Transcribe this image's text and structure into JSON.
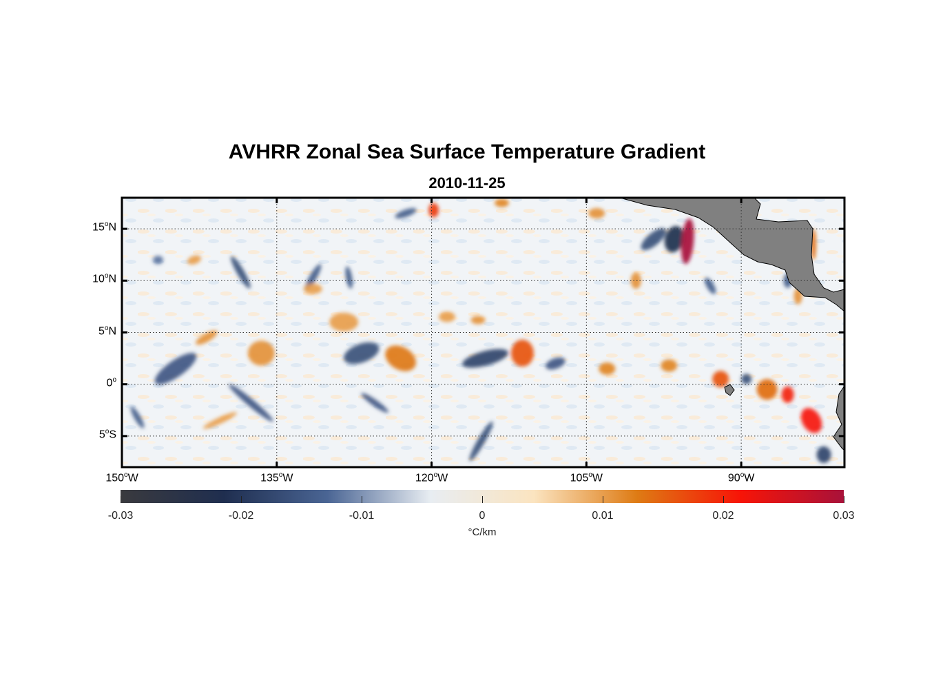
{
  "title": "AVHRR Zonal Sea Surface Temperature Gradient",
  "subtitle": "2010-11-25",
  "map": {
    "lon_range": [
      150,
      80
    ],
    "lat_range": [
      -8,
      18
    ],
    "lat_ticks": [
      {
        "lat": 15,
        "deg": "15",
        "hemi": "N"
      },
      {
        "lat": 10,
        "deg": "10",
        "hemi": "N"
      },
      {
        "lat": 5,
        "deg": "5",
        "hemi": "N"
      },
      {
        "lat": 0,
        "deg": "0",
        "hemi": ""
      },
      {
        "lat": -5,
        "deg": "5",
        "hemi": "S"
      }
    ],
    "lon_ticks": [
      {
        "lon": 150,
        "deg": "150",
        "hemi": "W"
      },
      {
        "lon": 135,
        "deg": "135",
        "hemi": "W"
      },
      {
        "lon": 120,
        "deg": "120",
        "hemi": "W"
      },
      {
        "lon": 105,
        "deg": "105",
        "hemi": "W"
      },
      {
        "lon": 90,
        "deg": "90",
        "hemi": "W"
      }
    ],
    "land_color": "#808080",
    "features": [
      {
        "lon": 144.8,
        "lat": 1.5,
        "v": -0.015,
        "rx": 2.4,
        "ry": 0.8,
        "rot": -35
      },
      {
        "lon": 138.5,
        "lat": 10.8,
        "v": -0.016,
        "rx": 1.8,
        "ry": 0.35,
        "rot": 60
      },
      {
        "lon": 137.5,
        "lat": -1.8,
        "v": -0.015,
        "rx": 2.8,
        "ry": 0.35,
        "rot": 40
      },
      {
        "lon": 141.8,
        "lat": 4.5,
        "v": 0.011,
        "rx": 1.2,
        "ry": 0.4,
        "rot": -30
      },
      {
        "lon": 136.5,
        "lat": 3.0,
        "v": 0.011,
        "rx": 1.3,
        "ry": 1.2,
        "rot": 0
      },
      {
        "lon": 131.5,
        "lat": 10.3,
        "v": -0.014,
        "rx": 1.5,
        "ry": 0.35,
        "rot": -60
      },
      {
        "lon": 128.0,
        "lat": 10.3,
        "v": -0.014,
        "rx": 1.1,
        "ry": 0.3,
        "rot": 80
      },
      {
        "lon": 126.8,
        "lat": 3.0,
        "v": -0.016,
        "rx": 1.8,
        "ry": 0.9,
        "rot": -20
      },
      {
        "lon": 128.5,
        "lat": 6.0,
        "v": 0.01,
        "rx": 1.4,
        "ry": 0.9,
        "rot": 0
      },
      {
        "lon": 123.0,
        "lat": 2.5,
        "v": 0.013,
        "rx": 1.6,
        "ry": 1.1,
        "rot": 30
      },
      {
        "lon": 125.5,
        "lat": -1.8,
        "v": -0.015,
        "rx": 1.6,
        "ry": 0.3,
        "rot": 35
      },
      {
        "lon": 131.5,
        "lat": 9.2,
        "v": 0.01,
        "rx": 0.9,
        "ry": 0.5,
        "rot": 0
      },
      {
        "lon": 122.5,
        "lat": 16.5,
        "v": -0.014,
        "rx": 1.1,
        "ry": 0.35,
        "rot": -20
      },
      {
        "lon": 119.8,
        "lat": 16.8,
        "v": 0.018,
        "rx": 0.5,
        "ry": 0.7,
        "rot": 0
      },
      {
        "lon": 114.8,
        "lat": 2.5,
        "v": -0.018,
        "rx": 2.3,
        "ry": 0.7,
        "rot": -15
      },
      {
        "lon": 111.2,
        "lat": 3.0,
        "v": 0.016,
        "rx": 1.1,
        "ry": 1.3,
        "rot": 0
      },
      {
        "lon": 108.0,
        "lat": 2.0,
        "v": -0.015,
        "rx": 1.0,
        "ry": 0.5,
        "rot": -20
      },
      {
        "lon": 118.5,
        "lat": 6.5,
        "v": 0.01,
        "rx": 0.8,
        "ry": 0.5,
        "rot": 0
      },
      {
        "lon": 115.5,
        "lat": 6.2,
        "v": 0.011,
        "rx": 0.7,
        "ry": 0.4,
        "rot": 0
      },
      {
        "lon": 115.2,
        "lat": -5.5,
        "v": -0.016,
        "rx": 2.2,
        "ry": 0.35,
        "rot": -60
      },
      {
        "lon": 103.0,
        "lat": 1.5,
        "v": 0.012,
        "rx": 0.8,
        "ry": 0.6,
        "rot": 0
      },
      {
        "lon": 98.5,
        "lat": 14.0,
        "v": -0.016,
        "rx": 1.5,
        "ry": 0.6,
        "rot": -40
      },
      {
        "lon": 96.5,
        "lat": 14.0,
        "v": -0.022,
        "rx": 0.9,
        "ry": 1.3,
        "rot": 15
      },
      {
        "lon": 95.2,
        "lat": 13.8,
        "v": 0.03,
        "rx": 0.6,
        "ry": 2.2,
        "rot": 5
      },
      {
        "lon": 93.0,
        "lat": 9.5,
        "v": -0.014,
        "rx": 0.9,
        "ry": 0.35,
        "rot": 60
      },
      {
        "lon": 97.0,
        "lat": 1.8,
        "v": 0.012,
        "rx": 0.8,
        "ry": 0.6,
        "rot": 0
      },
      {
        "lon": 92.0,
        "lat": 0.5,
        "v": 0.016,
        "rx": 0.8,
        "ry": 0.8,
        "rot": 0
      },
      {
        "lon": 89.5,
        "lat": 0.5,
        "v": -0.016,
        "rx": 0.5,
        "ry": 0.5,
        "rot": 0
      },
      {
        "lon": 87.5,
        "lat": -0.5,
        "v": 0.014,
        "rx": 1.0,
        "ry": 1.0,
        "rot": 0
      },
      {
        "lon": 85.5,
        "lat": -1.0,
        "v": 0.02,
        "rx": 0.6,
        "ry": 0.8,
        "rot": 0
      },
      {
        "lon": 83.2,
        "lat": -3.5,
        "v": 0.021,
        "rx": 0.9,
        "ry": 1.3,
        "rot": -30
      },
      {
        "lon": 82.0,
        "lat": -6.8,
        "v": -0.018,
        "rx": 0.7,
        "ry": 0.8,
        "rot": 0
      },
      {
        "lon": 83.0,
        "lat": 13.5,
        "v": 0.014,
        "rx": 0.25,
        "ry": 1.5,
        "rot": 0
      },
      {
        "lon": 85.5,
        "lat": 10.0,
        "v": -0.014,
        "rx": 0.4,
        "ry": 0.7,
        "rot": 0
      },
      {
        "lon": 84.5,
        "lat": 8.5,
        "v": 0.011,
        "rx": 0.4,
        "ry": 0.8,
        "rot": 0
      },
      {
        "lon": 100.2,
        "lat": 10.0,
        "v": 0.011,
        "rx": 0.5,
        "ry": 0.8,
        "rot": 0
      },
      {
        "lon": 104.0,
        "lat": 16.5,
        "v": 0.011,
        "rx": 0.8,
        "ry": 0.5,
        "rot": 0
      },
      {
        "lon": 113.2,
        "lat": 17.5,
        "v": 0.012,
        "rx": 0.7,
        "ry": 0.4,
        "rot": 0
      },
      {
        "lon": 140.5,
        "lat": -3.5,
        "v": 0.01,
        "rx": 1.8,
        "ry": 0.3,
        "rot": -25
      },
      {
        "lon": 146.5,
        "lat": 12.0,
        "v": -0.012,
        "rx": 0.5,
        "ry": 0.4,
        "rot": 0
      },
      {
        "lon": 143.0,
        "lat": 12.0,
        "v": 0.01,
        "rx": 0.7,
        "ry": 0.4,
        "rot": -20
      },
      {
        "lon": 148.5,
        "lat": -3.2,
        "v": -0.014,
        "rx": 1.2,
        "ry": 0.3,
        "rot": 60
      }
    ]
  },
  "colorbar": {
    "min": -0.03,
    "max": 0.03,
    "ticks": [
      "-0.03",
      "-0.02",
      "-0.01",
      "0",
      "0.01",
      "0.02",
      "0.03"
    ],
    "unit": "°C/km",
    "colors": [
      "#3a3a3e",
      "#1f2e4f",
      "#4a6594",
      "#e8edf2",
      "#fbe4c0",
      "#de7b14",
      "#f71407",
      "#a8123a"
    ]
  }
}
